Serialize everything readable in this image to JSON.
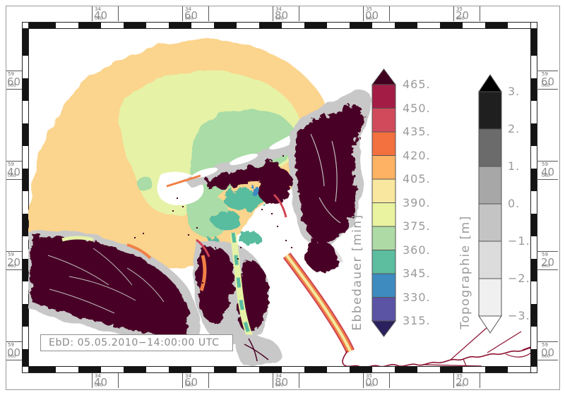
{
  "figure": {
    "annotation": "EbD: 05.05.2010−14:00:00 UTC",
    "background": "#ffffff"
  },
  "axes": {
    "x_ticks": [
      {
        "prefix": "34",
        "value": "40",
        "suffix": "000",
        "pos": 130
      },
      {
        "prefix": "34",
        "value": "60",
        "suffix": "000",
        "pos": 258
      },
      {
        "prefix": "34",
        "value": "80",
        "suffix": "000",
        "pos": 386
      },
      {
        "prefix": "35",
        "value": "00",
        "suffix": "000",
        "pos": 514
      },
      {
        "prefix": "35",
        "value": "20",
        "suffix": "000",
        "pos": 642
      }
    ],
    "y_ticks": [
      {
        "prefix": "59",
        "value": "60",
        "suffix": "000",
        "pos": 100
      },
      {
        "prefix": "59",
        "value": "40",
        "suffix": "000",
        "pos": 228
      },
      {
        "prefix": "59",
        "value": "20",
        "suffix": "000",
        "pos": 356
      },
      {
        "prefix": "59",
        "value": "00",
        "suffix": "000",
        "pos": 484
      }
    ]
  },
  "colorbars": [
    {
      "id": "ebbedauer",
      "title": "Ebbedauer [min]",
      "unit": "min",
      "tick_labels": [
        "465.",
        "450.",
        "435.",
        "420.",
        "405.",
        "390.",
        "375.",
        "360.",
        "345.",
        "330.",
        "315."
      ],
      "segment_colors": [
        "#a21c46",
        "#d14a5b",
        "#f3703f",
        "#fdb264",
        "#f9e79f",
        "#e9f3a0",
        "#aedaa5",
        "#5cbd9f",
        "#3e8bc0",
        "#5b53a4"
      ],
      "arrow_top_color": "#42001f",
      "arrow_bottom_color": "#2c215e"
    },
    {
      "id": "topographie",
      "title": "Topographie [m]",
      "unit": "m",
      "tick_labels": [
        "3.",
        "2.",
        "1.",
        "0.",
        "−1.",
        "−2.",
        "−3."
      ],
      "segment_colors": [
        "#1f1f1f",
        "#6b6b6b",
        "#a7a7a7",
        "#c4c4c4",
        "#dcdcdc",
        "#f0f0f0"
      ],
      "arrow_top_color": "#000000",
      "arrow_bottom_color": "#ffffff"
    }
  ],
  "map_colors": {
    "sea_far": "#fbd48d",
    "sea_mid": "#e6f2a6",
    "sea_green": "#a9dca6",
    "sea_teal": "#58bc9f",
    "sea_blue": "#3e8ac1",
    "flats": "#4a0226",
    "land_gray": "#c8c8c8",
    "land_light": "#dedede",
    "island_white": "#ffffff",
    "drainage": "#bdbdbd",
    "channel_orange": "#f08046",
    "channel_red": "#cf4454",
    "channel_yellow": "#f2e9a2",
    "river": "#8c1030"
  },
  "chart_data": {
    "type": "heatmap",
    "title": "Ebbedauer (ebb-tide duration) map of the German Bight with topography legend",
    "timestamp_label": "EbD: 05.05.2010−14:00:00 UTC",
    "legends": [
      {
        "label": "Ebbedauer [min]",
        "ticks": [
          465,
          450,
          435,
          420,
          405,
          390,
          375,
          360,
          345,
          330,
          315
        ]
      },
      {
        "label": "Topographie [m]",
        "ticks": [
          3,
          2,
          1,
          0,
          -1,
          -2,
          -3
        ]
      }
    ],
    "x_axis_coordinates_m": [
      3440000,
      3460000,
      3480000,
      3500000,
      3520000
    ],
    "y_axis_coordinates_m": [
      5960000,
      5940000,
      5920000,
      5900000
    ]
  }
}
